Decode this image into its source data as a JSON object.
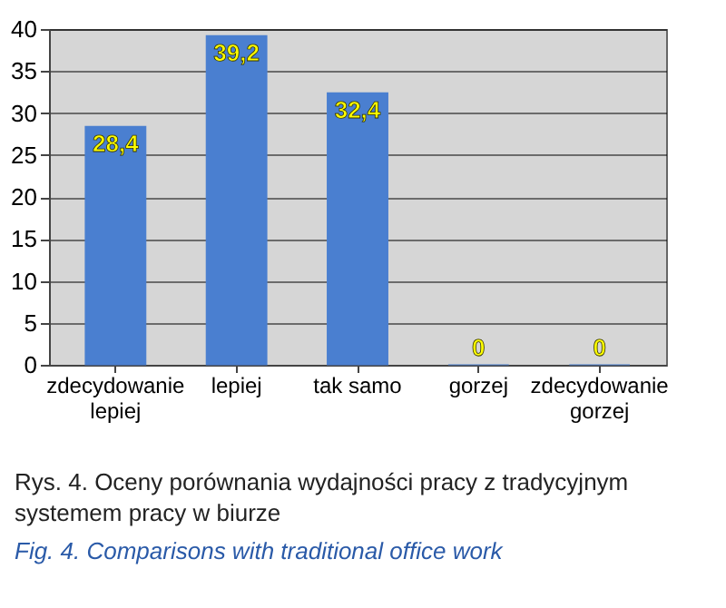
{
  "chart_data": {
    "type": "bar",
    "categories": [
      "zdecydowanie lepiej",
      "lepiej",
      "tak samo",
      "gorzej",
      "zdecydowanie gorzej"
    ],
    "values": [
      28.4,
      39.2,
      32.4,
      0,
      0
    ],
    "value_labels": [
      "28,4",
      "39,2",
      "32,4",
      "0",
      "0"
    ],
    "color": "#4a7fd0",
    "ylim": [
      0,
      40
    ],
    "yticks": [
      0,
      5,
      10,
      15,
      20,
      25,
      30,
      35,
      40
    ],
    "grid": "y",
    "annotations": [
      "Rys. 4. Oceny porównania wydajności pracy z tradycyjnym systemem pracy w biurze",
      "Fig. 4. Comparisons with traditional office work"
    ]
  }
}
